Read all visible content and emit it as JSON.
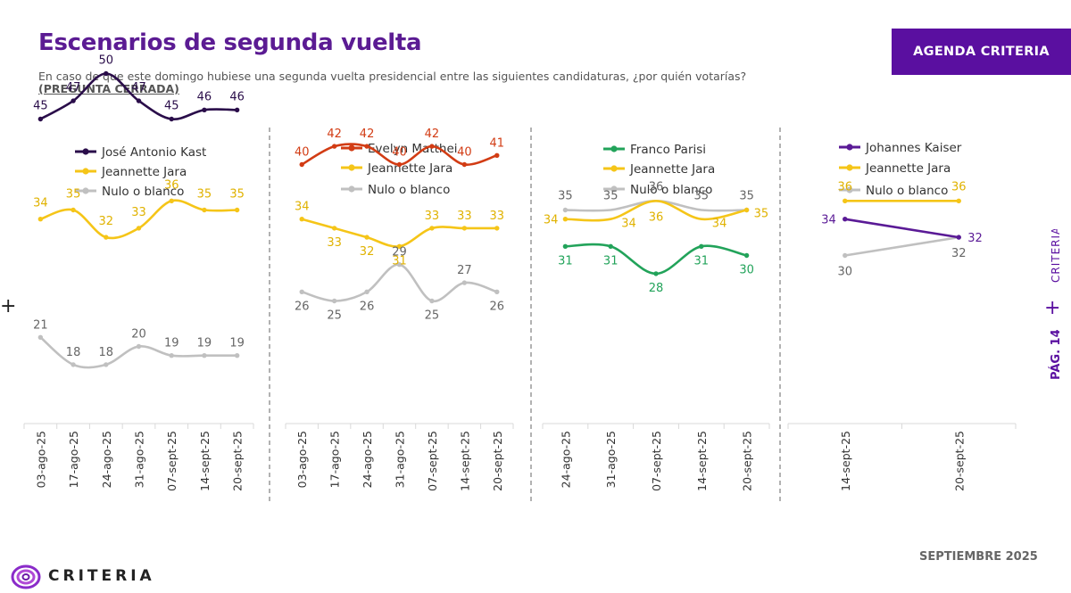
{
  "header": {
    "title": "Escenarios de segunda vuelta",
    "subtitle": "En caso de que este domingo hubiese una segunda vuelta presidencial entre las siguientes candidaturas, ¿por quién votarías?",
    "note": "(PREGUNTA CERRADA)",
    "badge": "AGENDA CRITERIA"
  },
  "side": {
    "brand": "CRITERIA",
    "page": "PÁG. 14",
    "plus": "+"
  },
  "footer": {
    "logo_text": "CRITERIA",
    "date": "SEPTIEMBRE 2025"
  },
  "colors": {
    "purple": "#5a0fa0",
    "kast": "#2a0d4a",
    "jara": "#f5c518",
    "nulo": "#c0c0c0",
    "matthei": "#d23c14",
    "parisi": "#22a35a",
    "kaiser": "#5a1a96",
    "label_gray": "#555555"
  },
  "chart_data": [
    {
      "type": "line",
      "categories": [
        "03-ago-25",
        "17-ago-25",
        "24-ago-25",
        "31-ago-25",
        "07-sept-25",
        "14-sept-25",
        "20-sept-25"
      ],
      "series": [
        {
          "name": "José Antonio Kast",
          "color": "#2a0d4a",
          "values": [
            45,
            47,
            50,
            47,
            45,
            46,
            46
          ]
        },
        {
          "name": "Jeannette Jara",
          "color": "#f5c518",
          "values": [
            34,
            35,
            32,
            33,
            36,
            35,
            35
          ]
        },
        {
          "name": "Nulo o blanco",
          "color": "#c0c0c0",
          "values": [
            21,
            18,
            18,
            20,
            19,
            19,
            19
          ]
        }
      ]
    },
    {
      "type": "line",
      "categories": [
        "03-ago-25",
        "17-ago-25",
        "24-ago-25",
        "31-ago-25",
        "07-sept-25",
        "14-sept-25",
        "20-sept-25"
      ],
      "series": [
        {
          "name": "Evelyn Matthei",
          "color": "#d23c14",
          "values": [
            40,
            42,
            42,
            40,
            42,
            40,
            41
          ]
        },
        {
          "name": "Jeannette Jara",
          "color": "#f5c518",
          "values": [
            34,
            33,
            32,
            31,
            33,
            33,
            33
          ]
        },
        {
          "name": "Nulo o blanco",
          "color": "#c0c0c0",
          "values": [
            26,
            25,
            26,
            29,
            25,
            27,
            26
          ]
        }
      ]
    },
    {
      "type": "line",
      "categories": [
        "24-ago-25",
        "31-ago-25",
        "07-sept-25",
        "14-sept-25",
        "20-sept-25"
      ],
      "series": [
        {
          "name": "Franco Parisi",
          "color": "#22a35a",
          "values": [
            31,
            31,
            28,
            31,
            30
          ]
        },
        {
          "name": "Jeannette Jara",
          "color": "#f5c518",
          "values": [
            34,
            34,
            36,
            34,
            35
          ]
        },
        {
          "name": "Nulo o blanco",
          "color": "#c0c0c0",
          "values": [
            35,
            35,
            36,
            35,
            35
          ]
        }
      ]
    },
    {
      "type": "line",
      "categories": [
        "14-sept-25",
        "20-sept-25"
      ],
      "series": [
        {
          "name": "Johannes Kaiser",
          "color": "#5a1a96",
          "values": [
            34,
            32
          ]
        },
        {
          "name": "Jeannette Jara",
          "color": "#f5c518",
          "values": [
            36,
            36
          ]
        },
        {
          "name": "Nulo o blanco",
          "color": "#c0c0c0",
          "values": [
            30,
            32
          ]
        }
      ]
    }
  ]
}
